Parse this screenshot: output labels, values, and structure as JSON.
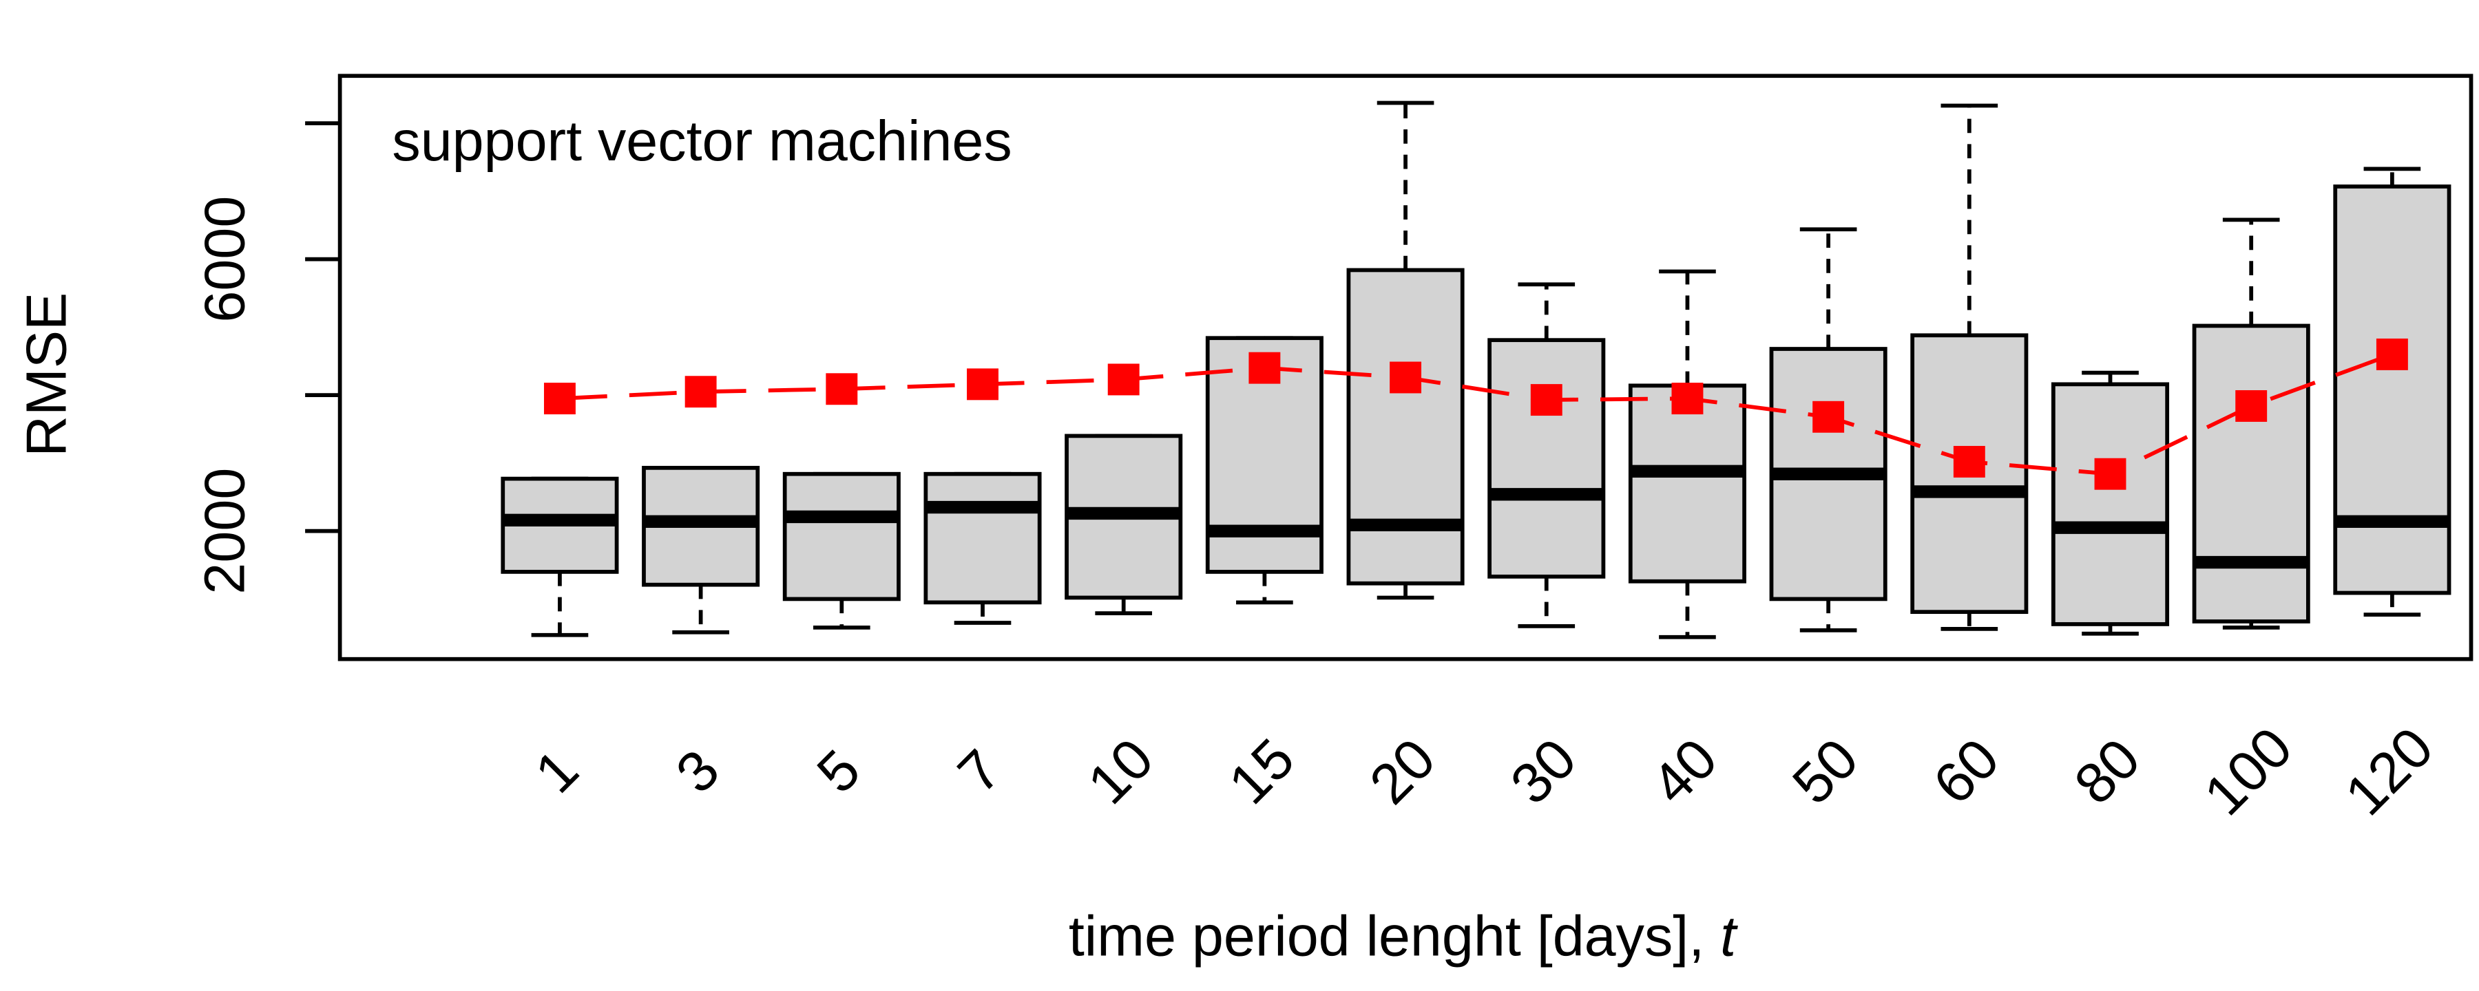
{
  "chart_data": {
    "type": "box",
    "annotation": "support vector machines",
    "ylabel": "RMSE",
    "xlabel": "time period lenght [days],",
    "xlabel_symbol": "t",
    "categories": [
      "1",
      "3",
      "5",
      "7",
      "10",
      "15",
      "20",
      "30",
      "40",
      "50",
      "60",
      "80",
      "100",
      "120"
    ],
    "box_color": "#d3d3d3",
    "mean_color": "#ff0000",
    "stats": {
      "min": [
        470,
        510,
        580,
        650,
        790,
        950,
        1020,
        600,
        440,
        540,
        560,
        490,
        580,
        770
      ],
      "q1": [
        1400,
        1210,
        1000,
        950,
        1020,
        1400,
        1230,
        1330,
        1260,
        1000,
        810,
        630,
        670,
        1090
      ],
      "median": [
        2160,
        2140,
        2210,
        2350,
        2260,
        2000,
        2090,
        2540,
        2880,
        2840,
        2580,
        2050,
        1540,
        2140
      ],
      "q3": [
        2770,
        2930,
        2840,
        2840,
        3400,
        4840,
        5840,
        4810,
        4140,
        4680,
        4880,
        4160,
        5020,
        7070
      ],
      "max": [
        2770,
        2930,
        2840,
        2840,
        3400,
        4840,
        8300,
        5630,
        5820,
        6440,
        8260,
        4330,
        6580,
        7330
      ]
    },
    "means": [
      3950,
      4050,
      4090,
      4160,
      4230,
      4400,
      4260,
      3930,
      3950,
      3680,
      3020,
      2840,
      3840,
      4600
    ],
    "ylim": [
      116,
      8698
    ],
    "yticks": [
      2000,
      {
        "value": 4000,
        "label": null
      },
      6000,
      {
        "value": 8000,
        "label": null
      }
    ]
  }
}
